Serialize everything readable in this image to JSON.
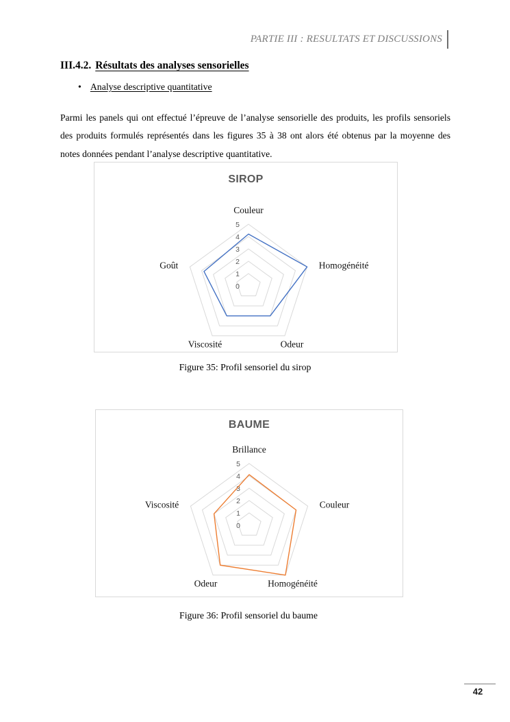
{
  "page": {
    "header": {
      "text": "PARTIE III : RESULTATS ET DISCUSSIONS"
    },
    "section": {
      "number": "III.4.2.",
      "title": "Résultats des analyses sensorielles"
    },
    "bullet": {
      "marker": "•",
      "text": "Analyse descriptive quantitative"
    },
    "paragraph": "Parmi les panels qui ont effectué l’épreuve de l’analyse sensorielle des produits, les profils sensoriels des produits formulés représentés dans les figures 35 à 38 ont alors été obtenus par la moyenne des notes données pendant l’analyse descriptive quantitative.",
    "page_number": "42"
  },
  "figures": [
    {
      "caption": "Figure 35: Profil sensoriel du sirop"
    },
    {
      "caption": "Figure 36: Profil sensoriel du baume"
    }
  ],
  "chart_data": [
    {
      "type": "radar",
      "title": "SIROP",
      "categories": [
        "Couleur",
        "Homogénéité",
        "Odeur",
        "Viscosité",
        "Goût"
      ],
      "series": [
        {
          "name": "SIROP",
          "values": [
            4.2,
            5,
            3,
            3,
            3.8
          ]
        }
      ],
      "scale": {
        "min": 0,
        "max": 5,
        "step": 1
      },
      "tick_labels": [
        "0",
        "1",
        "2",
        "3",
        "4",
        "5"
      ],
      "grid": true,
      "legend": false,
      "line_color": "#4472C4",
      "grid_color": "#D9D9D9"
    },
    {
      "type": "radar",
      "title": "BAUME",
      "categories": [
        "Brillance",
        "Couleur",
        "Homogénéité",
        "Odeur",
        "Viscosité"
      ],
      "series": [
        {
          "name": "BAUME",
          "values": [
            4.1,
            4,
            5,
            4,
            3
          ]
        }
      ],
      "scale": {
        "min": 0,
        "max": 5,
        "step": 1
      },
      "tick_labels": [
        "0",
        "1",
        "2",
        "3",
        "4",
        "5"
      ],
      "grid": true,
      "legend": false,
      "line_color": "#ED7D31",
      "grid_color": "#D9D9D9"
    }
  ],
  "colors": {
    "header_text": "#7D7D7D",
    "chart_title": "#595959",
    "grid": "#D9D9D9",
    "sirop_line": "#4472C4",
    "baume_line": "#ED7D31"
  }
}
